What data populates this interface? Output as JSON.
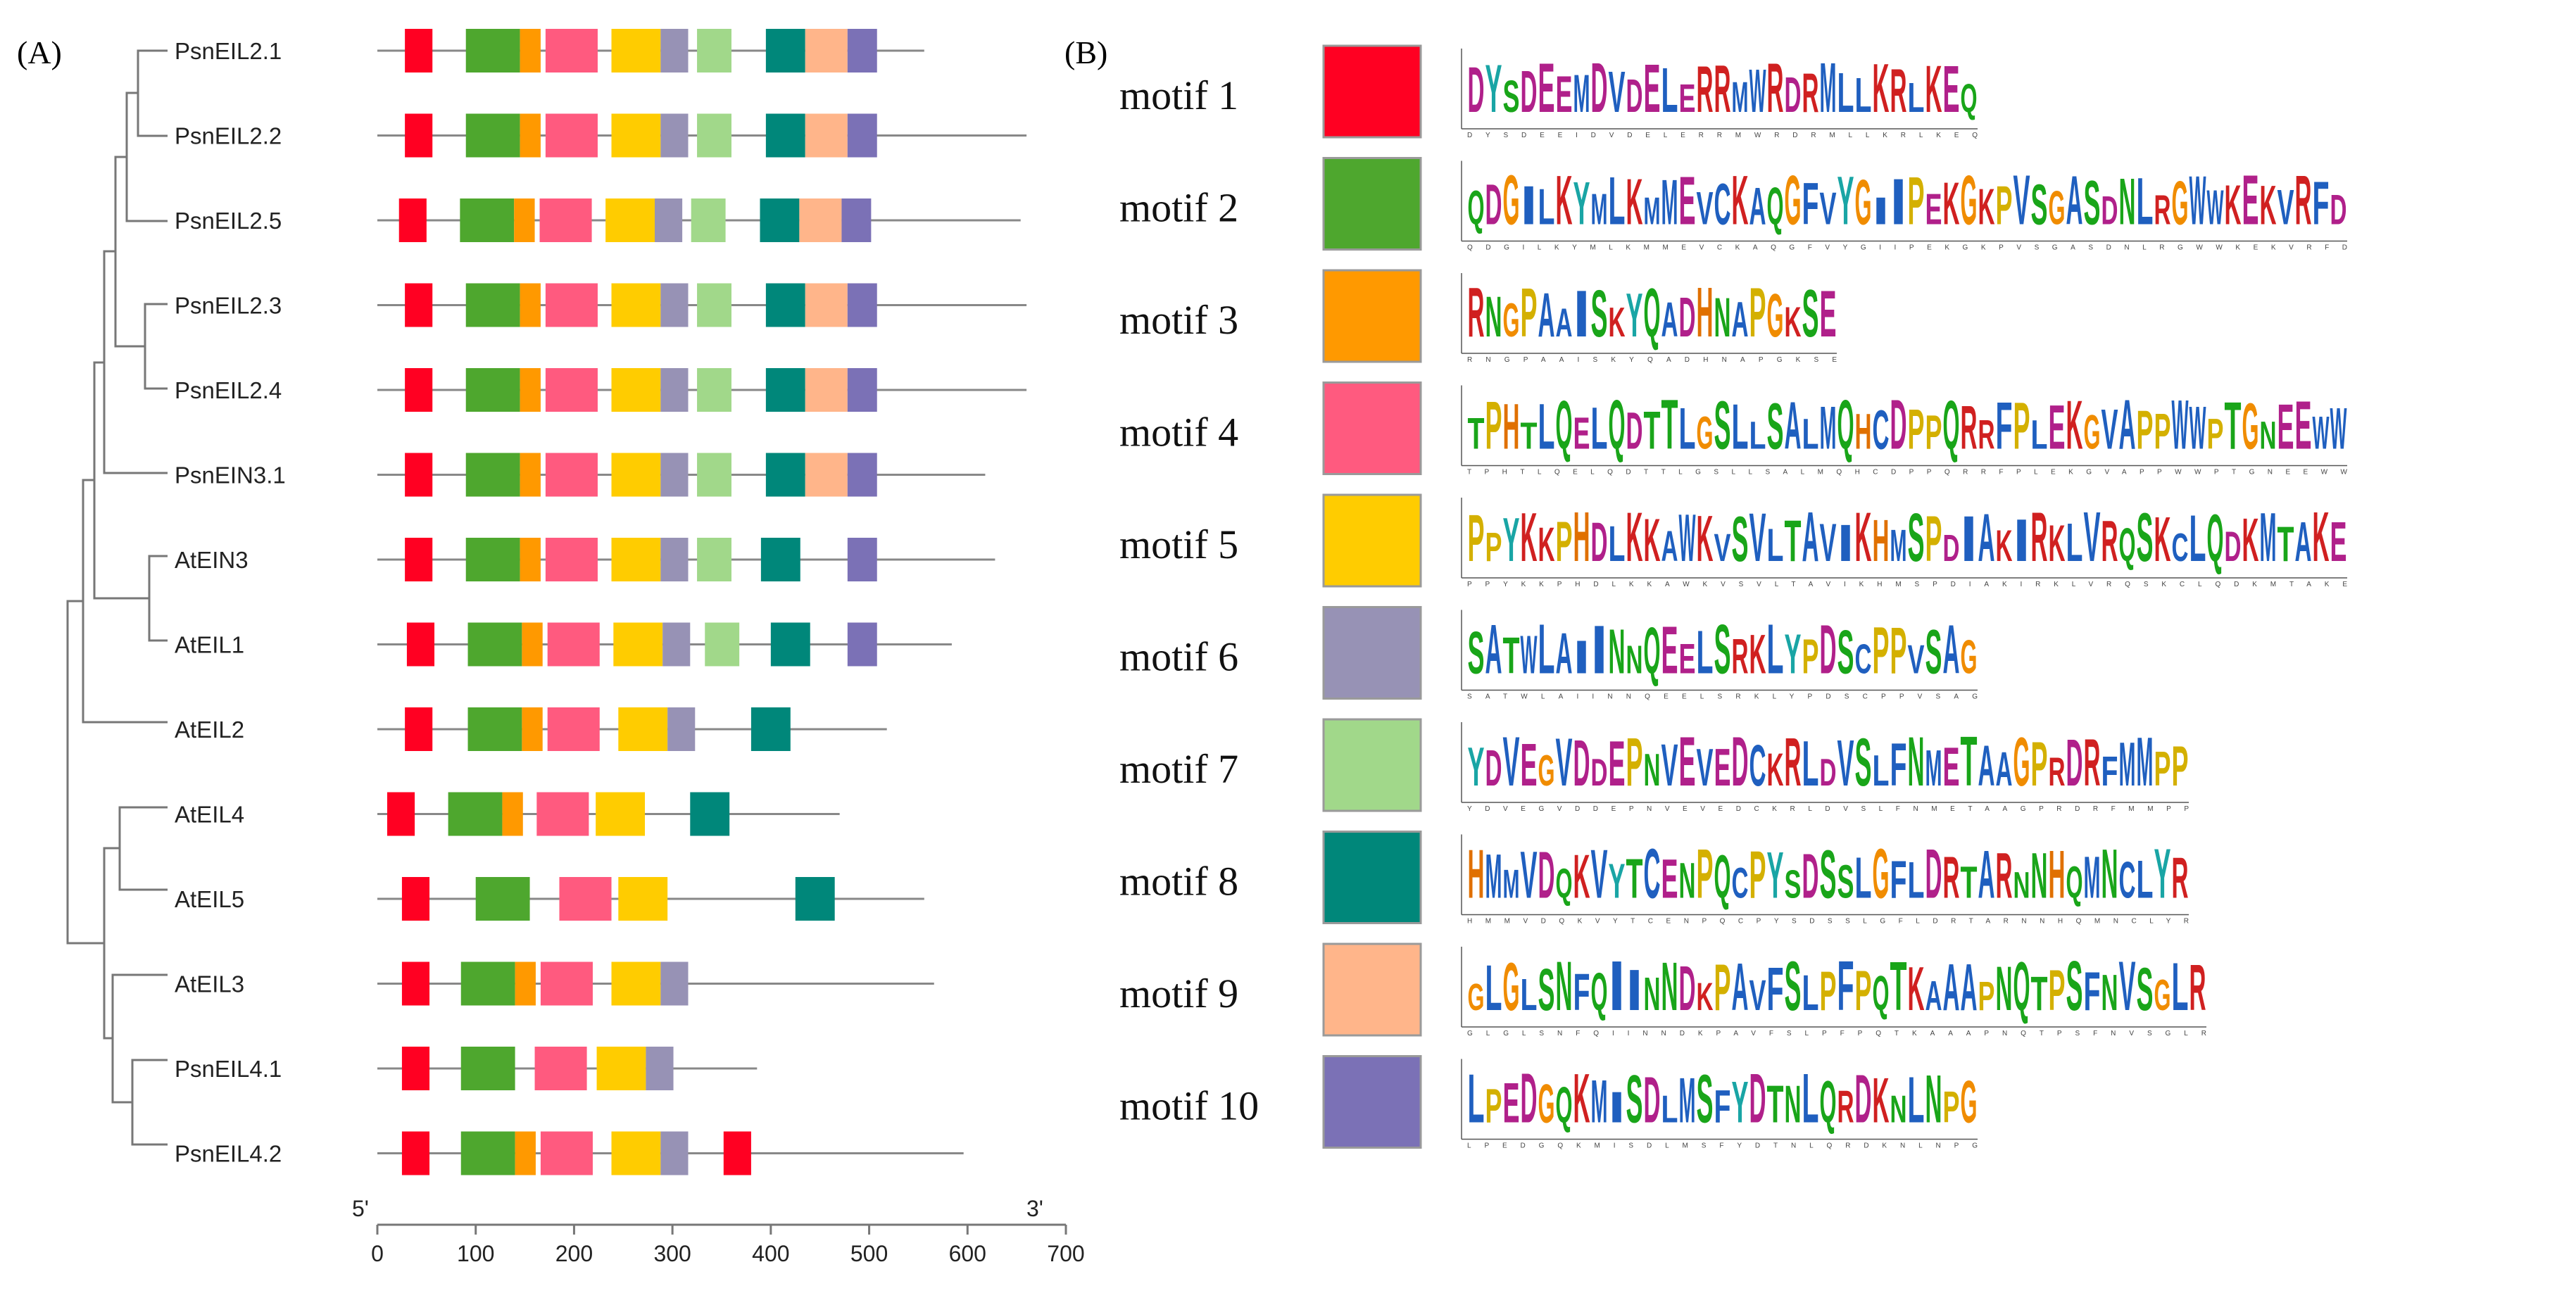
{
  "panel_a": {
    "label": "(A)",
    "axis": {
      "start_label": "5'",
      "end_label": "3'",
      "ticks": [
        0,
        100,
        200,
        300,
        400,
        500,
        600,
        700
      ],
      "max": 700
    },
    "genes": [
      {
        "name": "PsnEIL2.1",
        "length": 556,
        "motifs": [
          [
            1,
            28,
            56
          ],
          [
            2,
            90,
            145
          ],
          [
            3,
            145,
            166
          ],
          [
            4,
            171,
            224
          ],
          [
            5,
            238,
            288
          ],
          [
            6,
            288,
            316
          ],
          [
            7,
            325,
            360
          ],
          [
            8,
            395,
            435
          ],
          [
            9,
            435,
            478
          ],
          [
            10,
            478,
            508
          ]
        ]
      },
      {
        "name": "PsnEIL2.2",
        "length": 660,
        "motifs": [
          [
            1,
            28,
            56
          ],
          [
            2,
            90,
            145
          ],
          [
            3,
            145,
            166
          ],
          [
            4,
            171,
            224
          ],
          [
            5,
            238,
            288
          ],
          [
            6,
            288,
            316
          ],
          [
            7,
            325,
            360
          ],
          [
            8,
            395,
            435
          ],
          [
            9,
            435,
            478
          ],
          [
            10,
            478,
            508
          ]
        ]
      },
      {
        "name": "PsnEIL2.5",
        "length": 654,
        "motifs": [
          [
            1,
            22,
            50
          ],
          [
            2,
            84,
            139
          ],
          [
            3,
            139,
            160
          ],
          [
            4,
            165,
            218
          ],
          [
            5,
            232,
            282
          ],
          [
            6,
            282,
            310
          ],
          [
            7,
            319,
            354
          ],
          [
            8,
            389,
            429
          ],
          [
            9,
            429,
            472
          ],
          [
            10,
            472,
            502
          ]
        ]
      },
      {
        "name": "PsnEIL2.3",
        "length": 660,
        "motifs": [
          [
            1,
            28,
            56
          ],
          [
            2,
            90,
            145
          ],
          [
            3,
            145,
            166
          ],
          [
            4,
            171,
            224
          ],
          [
            5,
            238,
            288
          ],
          [
            6,
            288,
            316
          ],
          [
            7,
            325,
            360
          ],
          [
            8,
            395,
            435
          ],
          [
            9,
            435,
            478
          ],
          [
            10,
            478,
            508
          ]
        ]
      },
      {
        "name": "PsnEIL2.4",
        "length": 660,
        "motifs": [
          [
            1,
            28,
            56
          ],
          [
            2,
            90,
            145
          ],
          [
            3,
            145,
            166
          ],
          [
            4,
            171,
            224
          ],
          [
            5,
            238,
            288
          ],
          [
            6,
            288,
            316
          ],
          [
            7,
            325,
            360
          ],
          [
            8,
            395,
            435
          ],
          [
            9,
            435,
            478
          ],
          [
            10,
            478,
            508
          ]
        ]
      },
      {
        "name": "PsnEIN3.1",
        "length": 618,
        "motifs": [
          [
            1,
            28,
            56
          ],
          [
            2,
            90,
            145
          ],
          [
            3,
            145,
            166
          ],
          [
            4,
            171,
            224
          ],
          [
            5,
            238,
            288
          ],
          [
            6,
            288,
            316
          ],
          [
            7,
            325,
            360
          ],
          [
            8,
            395,
            435
          ],
          [
            9,
            435,
            478
          ],
          [
            10,
            478,
            508
          ]
        ]
      },
      {
        "name": "AtEIN3",
        "length": 628,
        "motifs": [
          [
            1,
            28,
            56
          ],
          [
            2,
            90,
            145
          ],
          [
            3,
            145,
            166
          ],
          [
            4,
            171,
            224
          ],
          [
            5,
            238,
            288
          ],
          [
            6,
            288,
            316
          ],
          [
            7,
            325,
            360
          ],
          [
            8,
            390,
            430
          ],
          [
            10,
            478,
            508
          ]
        ]
      },
      {
        "name": "AtEIL1",
        "length": 584,
        "motifs": [
          [
            1,
            30,
            58
          ],
          [
            2,
            92,
            147
          ],
          [
            3,
            147,
            168
          ],
          [
            4,
            173,
            226
          ],
          [
            5,
            240,
            290
          ],
          [
            6,
            290,
            318
          ],
          [
            7,
            333,
            368
          ],
          [
            8,
            400,
            440
          ],
          [
            10,
            478,
            508
          ]
        ]
      },
      {
        "name": "AtEIL2",
        "length": 518,
        "motifs": [
          [
            1,
            28,
            56
          ],
          [
            2,
            92,
            147
          ],
          [
            3,
            147,
            168
          ],
          [
            4,
            173,
            226
          ],
          [
            5,
            245,
            295
          ],
          [
            6,
            295,
            323
          ],
          [
            8,
            380,
            420
          ]
        ]
      },
      {
        "name": "AtEIL4",
        "length": 470,
        "motifs": [
          [
            1,
            10,
            38
          ],
          [
            2,
            72,
            127
          ],
          [
            3,
            127,
            148
          ],
          [
            4,
            162,
            215
          ],
          [
            5,
            222,
            272
          ],
          [
            8,
            318,
            358
          ]
        ]
      },
      {
        "name": "AtEIL5",
        "length": 556,
        "motifs": [
          [
            1,
            25,
            53
          ],
          [
            2,
            100,
            155
          ],
          [
            4,
            185,
            238
          ],
          [
            5,
            245,
            295
          ],
          [
            8,
            425,
            465
          ]
        ]
      },
      {
        "name": "AtEIL3",
        "length": 566,
        "motifs": [
          [
            1,
            25,
            53
          ],
          [
            2,
            85,
            140
          ],
          [
            3,
            140,
            161
          ],
          [
            4,
            166,
            219
          ],
          [
            5,
            238,
            288
          ],
          [
            6,
            288,
            316
          ]
        ]
      },
      {
        "name": "PsnEIL4.1",
        "length": 386,
        "motifs": [
          [
            1,
            25,
            53
          ],
          [
            2,
            85,
            140
          ],
          [
            4,
            160,
            213
          ],
          [
            5,
            223,
            273
          ],
          [
            6,
            273,
            301
          ]
        ]
      },
      {
        "name": "PsnEIL4.2",
        "length": 596,
        "motifs": [
          [
            1,
            25,
            53
          ],
          [
            2,
            85,
            140
          ],
          [
            3,
            140,
            161
          ],
          [
            4,
            166,
            219
          ],
          [
            5,
            238,
            288
          ],
          [
            6,
            288,
            316
          ],
          [
            1,
            352,
            380
          ]
        ]
      }
    ]
  },
  "panel_b": {
    "label": "(B)",
    "motifs": [
      {
        "label": "motif 1",
        "color": "#ff0022",
        "sequence": "DYSDEEMDVDELERRMWRDRMLLKRLKEQ",
        "consensus": "DYSDEEIDVDELERRMWRDRMLLKRLKEQ"
      },
      {
        "label": "motif 2",
        "color": "#4ea72e",
        "sequence": "QDGILKYMLKMMEVCKAQGFVYGIIPEKGKPVSGASDNLRGWWKEKVRFD",
        "consensus": "QDGILKYMLKMMEVCKAQGFVYGIIPEKGKPVSGASDNLRGWWKEKVRFD"
      },
      {
        "label": "motif 3",
        "color": "#ff9900",
        "sequence": "RNGPAAISKYQADHNAPGKSE",
        "consensus": "RNGPAAISKYQADHNAPGKSE"
      },
      {
        "label": "motif 4",
        "color": "#ff5a7f",
        "sequence": "TPHTLQELQDTTLGSLLSALMQHCDPPQRRFPLEKGVAPPWWPTGNEEWW",
        "consensus": "TPHTLQELQDTTLGSLLSALMQHCDPPQRRFPLEKGVAPPWWPTGNEEWW"
      },
      {
        "label": "motif 5",
        "color": "#ffcc00",
        "sequence": "PPYKKPHDLKKAWKVSVLTAVIKHMSPDIAKIRKLVRQSKCLQDKMTAKE",
        "consensus": "PPYKKPHDLKKAWKVSVLTAVIKHMSPDIAKIRKLVRQSKCLQDKMTAKE"
      },
      {
        "label": "motif 6",
        "color": "#9792b5",
        "sequence": "SATWLAIINNQEELSRKLYPDSCPPVSAG",
        "consensus": "SATWLAIINNQEELSRKLYPDSCPPVSAG"
      },
      {
        "label": "motif 7",
        "color": "#a1d88a",
        "sequence": "YDVEGVDDEPNVEVEDCKRLDVSLFNMETAAGPRDRFMMPP",
        "consensus": "YDVEGVDDEPNVEVEDCKRLDVSLFNMETAAGPRDRFMMPP"
      },
      {
        "label": "motif 8",
        "color": "#00877a",
        "sequence": "HMMVDQKVYTCENPQCPYSDSSLGFLDRTARNNHQMNCLYR",
        "consensus": "HMMVDQKVYTCENPQCPYSDSSLGFLDRTARNNHQMNCLYR"
      },
      {
        "label": "motif 9",
        "color": "#ffb58a",
        "sequence": "GLGLSNFQIINNDKPAVFSLPFPQTKAAAPNQTPSFNVSGLR",
        "consensus": "GLGLSNFQIINNDKPAVFSLPFPQTKAAAPNQTPSFNVSGLR"
      },
      {
        "label": "motif 10",
        "color": "#7b71b6",
        "sequence": "LPEDGQKMISDLMSFYDTNLQRDKNLNPG",
        "consensus": "LPEDGQKMISDLMSFYDTNLQRDKNLNPG"
      }
    ]
  }
}
